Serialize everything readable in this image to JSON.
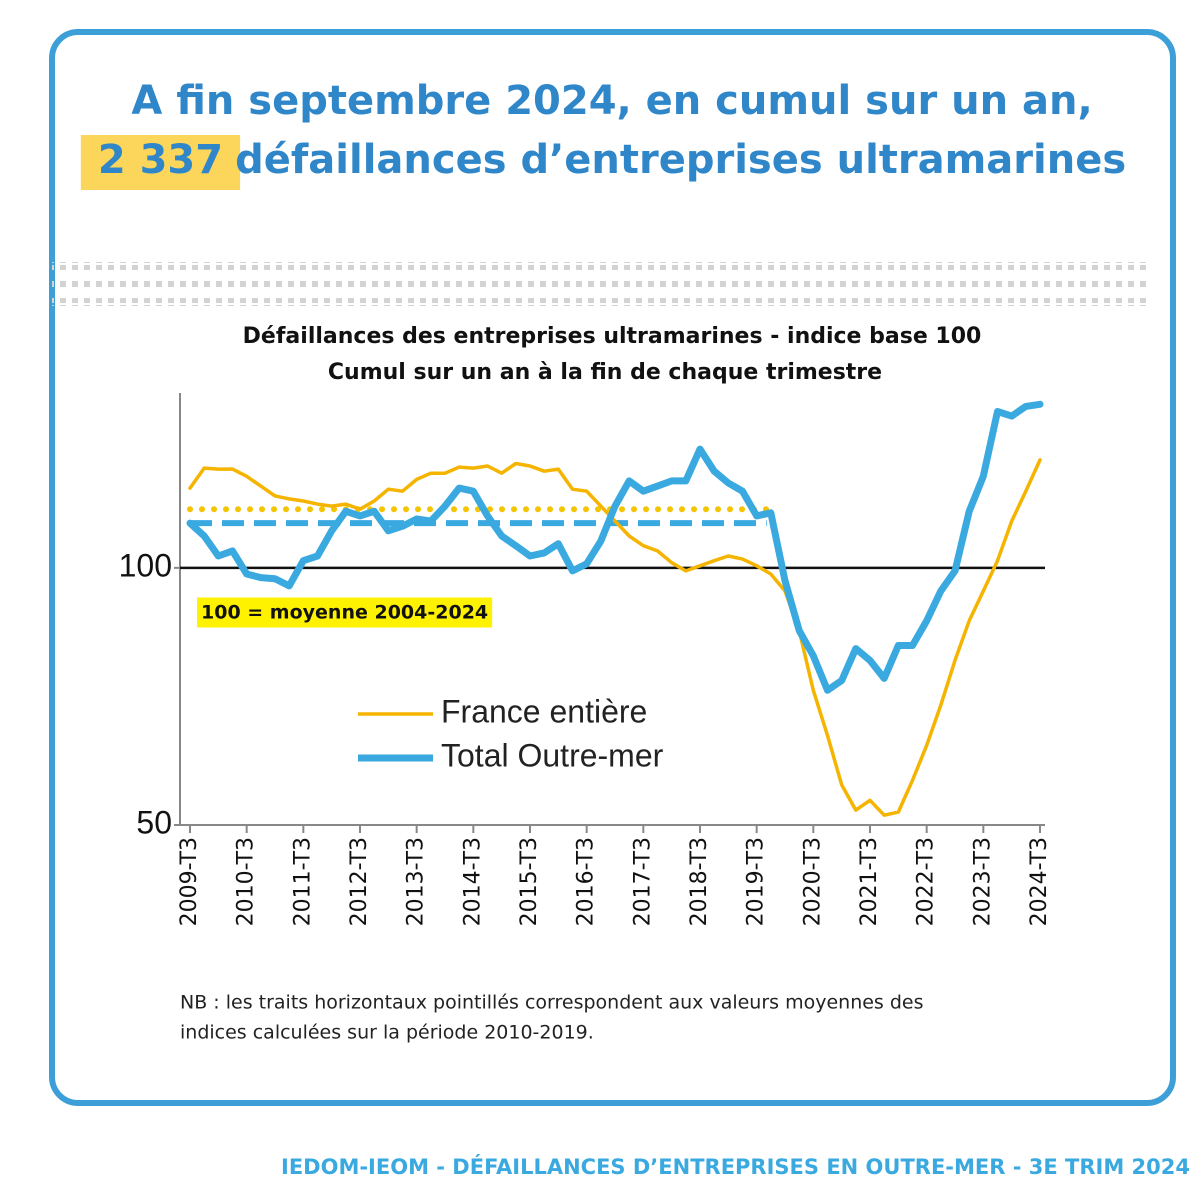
{
  "header": {
    "line1": "A fin septembre 2024, en cumul sur un an,",
    "highlight": "2 337",
    "line2": "défaillances d’entreprises ultramarines"
  },
  "chart_data": {
    "type": "line",
    "title": [
      "Défaillances des entreprises ultramarines - indice base 100",
      "Cumul sur un an à la fin de chaque trimestre"
    ],
    "categories": [
      "2009-T3",
      null,
      null,
      null,
      "2010-T3",
      null,
      null,
      null,
      "2011-T3",
      null,
      null,
      null,
      "2012-T3",
      null,
      null,
      null,
      "2013-T3",
      null,
      null,
      null,
      "2014-T3",
      null,
      null,
      null,
      "2015-T3",
      null,
      null,
      null,
      "2016-T3",
      null,
      null,
      null,
      "2017-T3",
      null,
      null,
      null,
      "2018-T3",
      null,
      null,
      null,
      "2019-T3",
      null,
      null,
      null,
      "2020-T3",
      null,
      null,
      null,
      "2021-T3",
      null,
      null,
      null,
      "2022-T3",
      null,
      null,
      null,
      "2023-T3",
      null,
      null,
      null,
      "2024-T3"
    ],
    "series": [
      {
        "name": "France entière",
        "color": "#f5b400",
        "width": 3.5,
        "values": [
          115.5,
          119.4,
          119.2,
          119.2,
          117.8,
          115.9,
          114,
          113.4,
          113,
          112.4,
          112,
          112.4,
          111.4,
          113,
          115.3,
          114.9,
          117.2,
          118.4,
          118.4,
          119.6,
          119.4,
          119.8,
          118.4,
          120.3,
          119.8,
          118.8,
          119.2,
          115.3,
          114.9,
          112,
          109.1,
          106.2,
          104.3,
          103.3,
          101,
          99.4,
          100.4,
          101.4,
          102.3,
          101.7,
          100.4,
          98.8,
          95.5,
          87.8,
          76.2,
          67.4,
          57.8,
          52.9,
          54.8,
          51.9,
          52.5,
          58.7,
          65.5,
          73.3,
          82,
          89.7,
          95.5,
          101.4,
          109.1,
          114.9,
          121
        ]
      },
      {
        "name": "Total Outre-mer",
        "color": "#3aa9e0",
        "width": 7,
        "values": [
          108.7,
          106.2,
          102.3,
          103.3,
          98.8,
          98.1,
          97.9,
          96.5,
          101.4,
          102.3,
          107.2,
          111,
          110.1,
          111,
          107.2,
          108.1,
          109.5,
          109.1,
          112,
          115.5,
          114.9,
          110.1,
          106.2,
          104.3,
          102.3,
          102.9,
          104.7,
          99.4,
          100.8,
          105.2,
          112,
          116.9,
          114.9,
          115.9,
          116.9,
          116.9,
          123.1,
          118.8,
          116.5,
          114.9,
          110.1,
          110.7,
          97.5,
          87.8,
          82.9,
          76.2,
          78.1,
          84.3,
          82,
          78.5,
          84.9,
          84.9,
          89.7,
          95.5,
          99.4,
          111,
          117.8,
          130.4,
          129.5,
          131.4,
          131.8
        ]
      }
    ],
    "mean_lines": [
      {
        "value": 111.4,
        "color": "#f5c400",
        "style": "dotted",
        "span": [
          "2009-T3",
          "2019-T3"
        ]
      },
      {
        "value": 108.7,
        "color": "#3aa9e0",
        "style": "dashed",
        "span": [
          "2009-T3",
          "2019-T3"
        ]
      }
    ],
    "reference_line": 100,
    "annotation": "100 = moyenne 2004-2024",
    "ylim": [
      50,
      134
    ],
    "yticks": [
      50,
      100
    ],
    "legend": "bottom-left"
  },
  "note": [
    "NB : les traits horizontaux pointillés correspondent aux valeurs moyennes des",
    "indices calculées sur la période 2010-2019."
  ],
  "footer": "IEDOM-IEOM - DÉFAILLANCES D’ENTREPRISES EN OUTRE-MER - 3E TRIM 2024"
}
